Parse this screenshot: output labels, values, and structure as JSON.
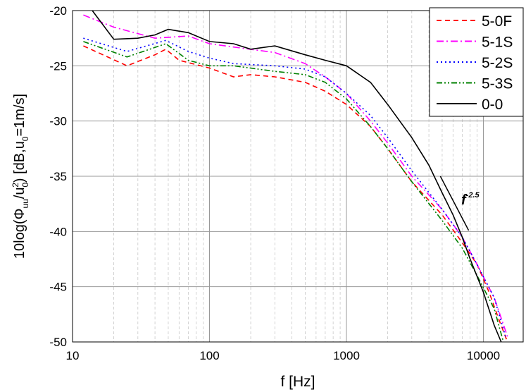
{
  "chart_data": {
    "type": "line",
    "xlabel": "f [Hz]",
    "ylabel": {
      "prefix": "10log(Φ",
      "sub1": "uu",
      "mid": "/u",
      "sub2": "0",
      "sup2": "2",
      "suffix": ") [dB,u",
      "sub3": "0",
      "end": "=1m/s]"
    },
    "xscale": "log",
    "xlim": [
      10,
      20000
    ],
    "ylim": [
      -50,
      -20
    ],
    "xticks": [
      10,
      100,
      1000,
      10000
    ],
    "xtick_labels": [
      "10",
      "100",
      "1000",
      "10000"
    ],
    "yticks": [
      -20,
      -25,
      -30,
      -35,
      -40,
      -45,
      -50
    ],
    "ytick_labels": [
      "-20",
      "-25",
      "-30",
      "-35",
      "-40",
      "-45",
      "-50"
    ],
    "grid": true,
    "legend_placement": "top-right",
    "series": [
      {
        "name": "5-0F",
        "color": "#ff0000",
        "dash": "dashed",
        "points": [
          [
            12,
            -23.2
          ],
          [
            25,
            -25
          ],
          [
            40,
            -24
          ],
          [
            48,
            -23.5
          ],
          [
            60,
            -24.5
          ],
          [
            100,
            -25.2
          ],
          [
            150,
            -26
          ],
          [
            200,
            -25.8
          ],
          [
            300,
            -26
          ],
          [
            500,
            -26.5
          ],
          [
            700,
            -27.3
          ],
          [
            1000,
            -28.5
          ],
          [
            1500,
            -30.5
          ],
          [
            2000,
            -32.5
          ],
          [
            3000,
            -35.5
          ],
          [
            5000,
            -38.5
          ],
          [
            7000,
            -41
          ],
          [
            9000,
            -43
          ],
          [
            11000,
            -45.5
          ],
          [
            13000,
            -48
          ],
          [
            15000,
            -50
          ]
        ]
      },
      {
        "name": "5-1S",
        "color": "#ff00ff",
        "dash": "dashdot",
        "points": [
          [
            12,
            -20.4
          ],
          [
            20,
            -21.5
          ],
          [
            40,
            -22.5
          ],
          [
            70,
            -22.3
          ],
          [
            100,
            -23
          ],
          [
            150,
            -23.3
          ],
          [
            300,
            -23.8
          ],
          [
            500,
            -24.8
          ],
          [
            700,
            -26
          ],
          [
            1000,
            -27.5
          ],
          [
            1500,
            -30
          ],
          [
            2000,
            -32
          ],
          [
            3000,
            -35
          ],
          [
            5000,
            -38
          ],
          [
            7000,
            -40.5
          ],
          [
            9000,
            -43
          ],
          [
            12000,
            -46
          ],
          [
            15000,
            -49.5
          ]
        ]
      },
      {
        "name": "5-2S",
        "color": "#0000ff",
        "dash": "dotted",
        "points": [
          [
            12,
            -22.5
          ],
          [
            25,
            -23.7
          ],
          [
            48,
            -22.7
          ],
          [
            70,
            -23.7
          ],
          [
            100,
            -24.3
          ],
          [
            150,
            -24.8
          ],
          [
            300,
            -25
          ],
          [
            500,
            -25.3
          ],
          [
            700,
            -26
          ],
          [
            1000,
            -27.5
          ],
          [
            1500,
            -29.5
          ],
          [
            2000,
            -31.5
          ],
          [
            3000,
            -34.5
          ],
          [
            5000,
            -38
          ],
          [
            7000,
            -40.5
          ],
          [
            9000,
            -43
          ],
          [
            12000,
            -46
          ],
          [
            14500,
            -49.5
          ]
        ]
      },
      {
        "name": "5-3S",
        "color": "#008000",
        "dash": "dashdotdot",
        "points": [
          [
            12,
            -22.8
          ],
          [
            25,
            -24.2
          ],
          [
            48,
            -23
          ],
          [
            70,
            -24.5
          ],
          [
            100,
            -25
          ],
          [
            150,
            -25
          ],
          [
            300,
            -25.5
          ],
          [
            500,
            -25.8
          ],
          [
            700,
            -26.5
          ],
          [
            1000,
            -28
          ],
          [
            1500,
            -30.5
          ],
          [
            2000,
            -32.5
          ],
          [
            3000,
            -35.5
          ],
          [
            5000,
            -39
          ],
          [
            7000,
            -41.5
          ],
          [
            9000,
            -44
          ],
          [
            12000,
            -47
          ],
          [
            14000,
            -50
          ]
        ]
      },
      {
        "name": "0-0",
        "color": "#000000",
        "dash": "solid",
        "points": [
          [
            13,
            -19.5
          ],
          [
            20,
            -22.6
          ],
          [
            30,
            -22.5
          ],
          [
            40,
            -22.2
          ],
          [
            50,
            -21.7
          ],
          [
            70,
            -22
          ],
          [
            100,
            -22.8
          ],
          [
            150,
            -23
          ],
          [
            200,
            -23.5
          ],
          [
            300,
            -23.2
          ],
          [
            500,
            -24
          ],
          [
            700,
            -24.5
          ],
          [
            1000,
            -25
          ],
          [
            1500,
            -26.5
          ],
          [
            2000,
            -28.5
          ],
          [
            3000,
            -31.5
          ],
          [
            4000,
            -34
          ],
          [
            5000,
            -36.5
          ],
          [
            6000,
            -38.5
          ],
          [
            7000,
            -40.5
          ],
          [
            8000,
            -42.5
          ],
          [
            10000,
            -45.5
          ],
          [
            12000,
            -48.5
          ],
          [
            13500,
            -50
          ]
        ]
      }
    ],
    "annotations": [
      {
        "text": "f",
        "sup": "-2.5",
        "line": [
          [
            4850,
            -35
          ],
          [
            7800,
            -39.9
          ]
        ]
      }
    ]
  }
}
